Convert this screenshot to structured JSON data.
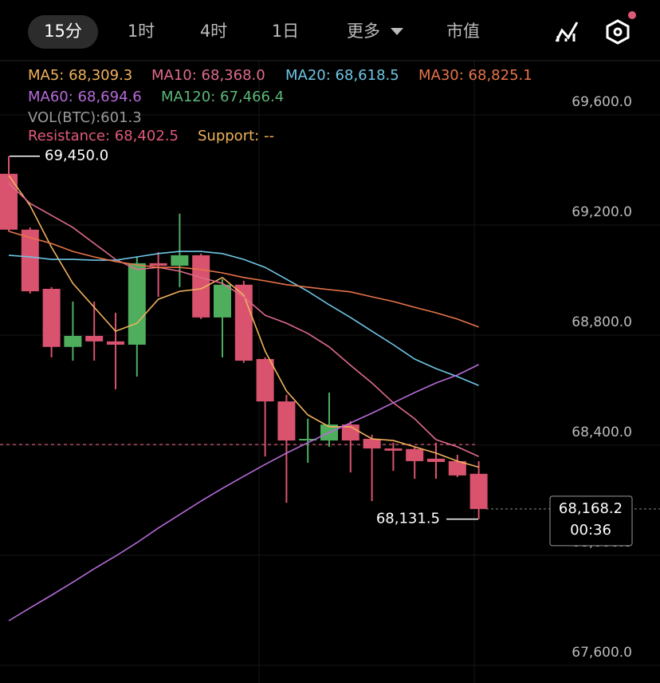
{
  "tabs": [
    "15分",
    "1时",
    "4时",
    "1日",
    "更多",
    "市值"
  ],
  "chart_data": {
    "type": "candlestick",
    "legend": [
      {
        "label": "MA5: 68,309.3",
        "color": "#f2b25c"
      },
      {
        "label": "MA10: 68,368.0",
        "color": "#e06b8a"
      },
      {
        "label": "MA20: 68,618.5",
        "color": "#6ec6e6"
      },
      {
        "label": "MA30: 68,825.1",
        "color": "#e8744a"
      },
      {
        "label": "MA60: 68,694.6",
        "color": "#b66bd8"
      },
      {
        "label": "MA120: 67,466.4",
        "color": "#5cb878"
      },
      {
        "label": "VOL(BTC):601.3",
        "color": "#9a9a9a"
      },
      {
        "label": "Resistance: 68,402.5",
        "color": "#e05a78"
      },
      {
        "label": "Support: --",
        "color": "#f0b35a"
      }
    ],
    "up_color": "#4fae5e",
    "down_color": "#d9536f",
    "open": [
      69386,
      69183,
      68968,
      68757,
      68797,
      68777,
      68765,
      69061,
      69052,
      69090,
      68864,
      68983,
      68713,
      68559,
      68417,
      68417,
      68475,
      68423,
      68388,
      68386,
      68351,
      68342,
      68296
    ],
    "high": [
      69450,
      69191,
      68974,
      68922,
      68922,
      68881,
      69084,
      69101,
      69241,
      69096,
      69003,
      68997,
      68719,
      68583,
      68496,
      68591,
      68487,
      68438,
      68409,
      68394,
      68409,
      68365,
      68342
    ],
    "low": [
      69177,
      68951,
      68719,
      68707,
      68707,
      68603,
      68649,
      68939,
      68974,
      68858,
      68719,
      68699,
      68359,
      68191,
      68336,
      68394,
      68301,
      68197,
      68307,
      68278,
      68278,
      68284,
      68131.5
    ],
    "close": [
      69183,
      68959,
      68757,
      68797,
      68777,
      68765,
      69061,
      69052,
      69090,
      68864,
      68983,
      68707,
      68559,
      68417,
      68423,
      68475,
      68417,
      68388,
      68380,
      68342,
      68339,
      68290,
      68168.2
    ],
    "series": [
      {
        "color": "#f2b25c",
        "values": [
          69380,
          69270,
          69119,
          68988,
          68901,
          68814,
          68843,
          68930,
          68959,
          68968,
          69009,
          68945,
          68742,
          68597,
          68510,
          68467,
          68467,
          68423,
          68417,
          68394,
          68371,
          68342,
          68320
        ]
      },
      {
        "color": "#e06b8a",
        "values": [
          69351,
          69278,
          69235,
          69191,
          69133,
          69075,
          69038,
          69046,
          69032,
          69009,
          68988,
          68939,
          68872,
          68843,
          68806,
          68757,
          68690,
          68626,
          68554,
          68496,
          68420,
          68394,
          68359
        ]
      },
      {
        "color": "#6ec6e6",
        "values": [
          69090,
          69084,
          69075,
          69075,
          69072,
          69072,
          69084,
          69096,
          69104,
          69104,
          69096,
          69075,
          69046,
          69003,
          68959,
          68910,
          68864,
          68814,
          68765,
          68713,
          68678,
          68649,
          68617
        ]
      },
      {
        "color": "#e8744a",
        "values": [
          69177,
          69154,
          69133,
          69104,
          69084,
          69067,
          69055,
          69046,
          69046,
          69038,
          69026,
          69009,
          68997,
          68983,
          68974,
          68965,
          68957,
          68939,
          68922,
          68901,
          68881,
          68858,
          68829
        ]
      },
      {
        "color": "#b66bd8",
        "values": [
          67762,
          67809,
          67855,
          67902,
          67951,
          67997,
          68046,
          68099,
          68148,
          68197,
          68243,
          68287,
          68330,
          68371,
          68409,
          68446,
          68481,
          68516,
          68554,
          68591,
          68626,
          68655,
          68693
        ]
      }
    ],
    "ylim": [
      67536,
      69797
    ],
    "yticks": [
      {
        "value": 69600,
        "label": "69,600.0"
      },
      {
        "value": 69200,
        "label": "69,200.0"
      },
      {
        "value": 68800,
        "label": "68,800.0"
      },
      {
        "value": 68400,
        "label": "68,400.0"
      },
      {
        "value": 68000,
        "label": "68,000.0"
      },
      {
        "value": 67600,
        "label": "67,600.0"
      }
    ],
    "grid": true,
    "high_marker": {
      "value": 69450,
      "label": "69,450.0"
    },
    "low_marker": {
      "value": 68131.5,
      "label": "68,131.5"
    },
    "resistance": 68402.5,
    "current_price": {
      "value": 68168.2,
      "label": "68,168.2"
    },
    "countdown": "00:36"
  }
}
